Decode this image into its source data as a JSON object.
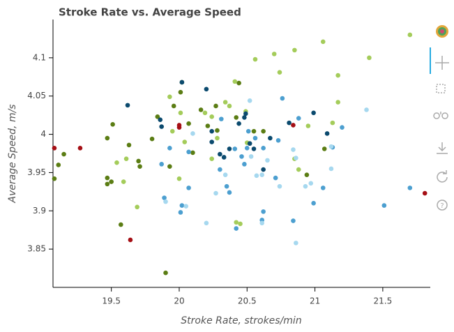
{
  "chart_data": {
    "type": "scatter",
    "title": "Stroke Rate vs. Average Speed",
    "x_label": "Stroke Rate, strokes/min",
    "y_label": "Average Speed, m/s",
    "xlim": [
      19.07,
      21.85
    ],
    "ylim": [
      3.8,
      4.15
    ],
    "xticks": [
      19.5,
      20,
      20.5,
      21,
      21.5
    ],
    "yticks": [
      3.85,
      3.9,
      3.95,
      4,
      4.05,
      4.1
    ],
    "series": [
      {
        "color": "#a50f15",
        "x": [
          19.08,
          19.27,
          19.64,
          20.0,
          20.0,
          21.81,
          20.84
        ],
        "y": [
          3.982,
          3.982,
          3.862,
          4.009,
          4.012,
          3.923,
          4.012
        ]
      },
      {
        "color": "#5b7d14",
        "x": [
          19.08,
          19.11,
          19.15,
          19.47,
          19.51,
          19.47,
          19.47,
          19.5,
          19.57,
          19.63,
          19.7,
          19.71,
          19.8,
          19.84,
          19.9,
          19.93,
          19.96,
          20.01,
          20.02,
          20.07,
          20.1,
          20.16,
          20.21,
          20.28,
          20.27,
          20.42,
          20.44,
          20.55,
          20.62,
          20.94,
          21.07
        ],
        "y": [
          3.942,
          3.96,
          3.974,
          3.995,
          4.013,
          3.943,
          3.935,
          3.938,
          3.882,
          3.986,
          3.965,
          3.958,
          3.994,
          4.023,
          3.819,
          3.958,
          4.037,
          4.055,
          4.068,
          4.014,
          3.976,
          4.032,
          4.011,
          4.005,
          4.037,
          4.022,
          4.067,
          4.004,
          4.004,
          3.947,
          3.981
        ]
      },
      {
        "color": "#a4cc5a",
        "x": [
          19.69,
          19.59,
          19.54,
          19.61,
          19.93,
          19.95,
          20.01,
          20.04,
          20.19,
          20.24,
          20.24,
          20.28,
          20.34,
          20.37,
          20.41,
          20.49,
          20.56,
          20.5,
          20.7,
          20.74,
          20.85,
          20.85,
          20.88,
          20.95,
          21.06,
          21.13,
          21.17,
          21.17,
          21.4,
          21.7,
          20.42,
          20.45,
          20.0
        ],
        "y": [
          3.905,
          3.938,
          3.963,
          3.968,
          4.049,
          4.004,
          4.028,
          3.99,
          4.028,
          4.023,
          3.968,
          3.995,
          4.042,
          4.037,
          4.069,
          4.03,
          4.098,
          3.989,
          4.105,
          4.081,
          4.11,
          3.968,
          3.954,
          4.011,
          4.121,
          4.015,
          4.077,
          4.042,
          4.1,
          4.13,
          3.885,
          3.883,
          3.942
        ]
      },
      {
        "color": "#0b4a6e",
        "x": [
          19.62,
          19.86,
          19.87,
          20.02,
          20.2,
          20.24,
          20.24,
          20.3,
          20.33,
          20.37,
          20.49,
          20.48,
          20.52,
          20.55,
          20.62,
          20.67,
          20.81,
          20.99,
          21.09,
          20.44
        ],
        "y": [
          4.038,
          4.019,
          4.01,
          4.068,
          4.059,
          4.004,
          3.99,
          3.974,
          3.97,
          3.981,
          4.027,
          4.022,
          3.988,
          3.981,
          3.954,
          3.995,
          4.015,
          4.028,
          4.001,
          4.014
        ]
      },
      {
        "color": "#4c9fd0",
        "x": [
          19.87,
          19.93,
          20.07,
          20.07,
          20.02,
          20.01,
          19.89,
          20.31,
          20.35,
          20.37,
          20.3,
          20.41,
          20.46,
          20.48,
          20.5,
          20.51,
          20.56,
          20.61,
          20.62,
          20.62,
          20.71,
          20.73,
          20.76,
          20.84,
          20.88,
          20.99,
          21.06,
          21.2,
          21.13,
          21.51,
          21.7,
          20.42
        ],
        "y": [
          3.961,
          3.982,
          3.977,
          3.93,
          3.907,
          3.898,
          3.917,
          4.02,
          3.932,
          3.924,
          3.954,
          3.981,
          3.971,
          3.961,
          3.982,
          4.004,
          3.995,
          3.888,
          3.899,
          3.982,
          3.943,
          3.992,
          4.047,
          3.887,
          4.021,
          3.91,
          3.93,
          4.009,
          3.983,
          3.907,
          3.93,
          3.877
        ]
      },
      {
        "color": "#a6d8ef",
        "x": [
          20.1,
          20.2,
          20.27,
          20.34,
          20.52,
          20.53,
          20.57,
          20.61,
          20.65,
          20.74,
          20.84,
          20.86,
          20.93,
          20.97,
          21.12,
          21.12,
          21.38,
          20.86,
          20.61,
          20.05,
          19.9
        ],
        "y": [
          4.001,
          3.884,
          3.923,
          3.947,
          4.044,
          3.971,
          3.946,
          3.947,
          3.966,
          3.932,
          3.98,
          3.969,
          3.932,
          3.936,
          3.955,
          3.984,
          4.032,
          3.858,
          3.884,
          3.906,
          3.912
        ]
      }
    ]
  }
}
